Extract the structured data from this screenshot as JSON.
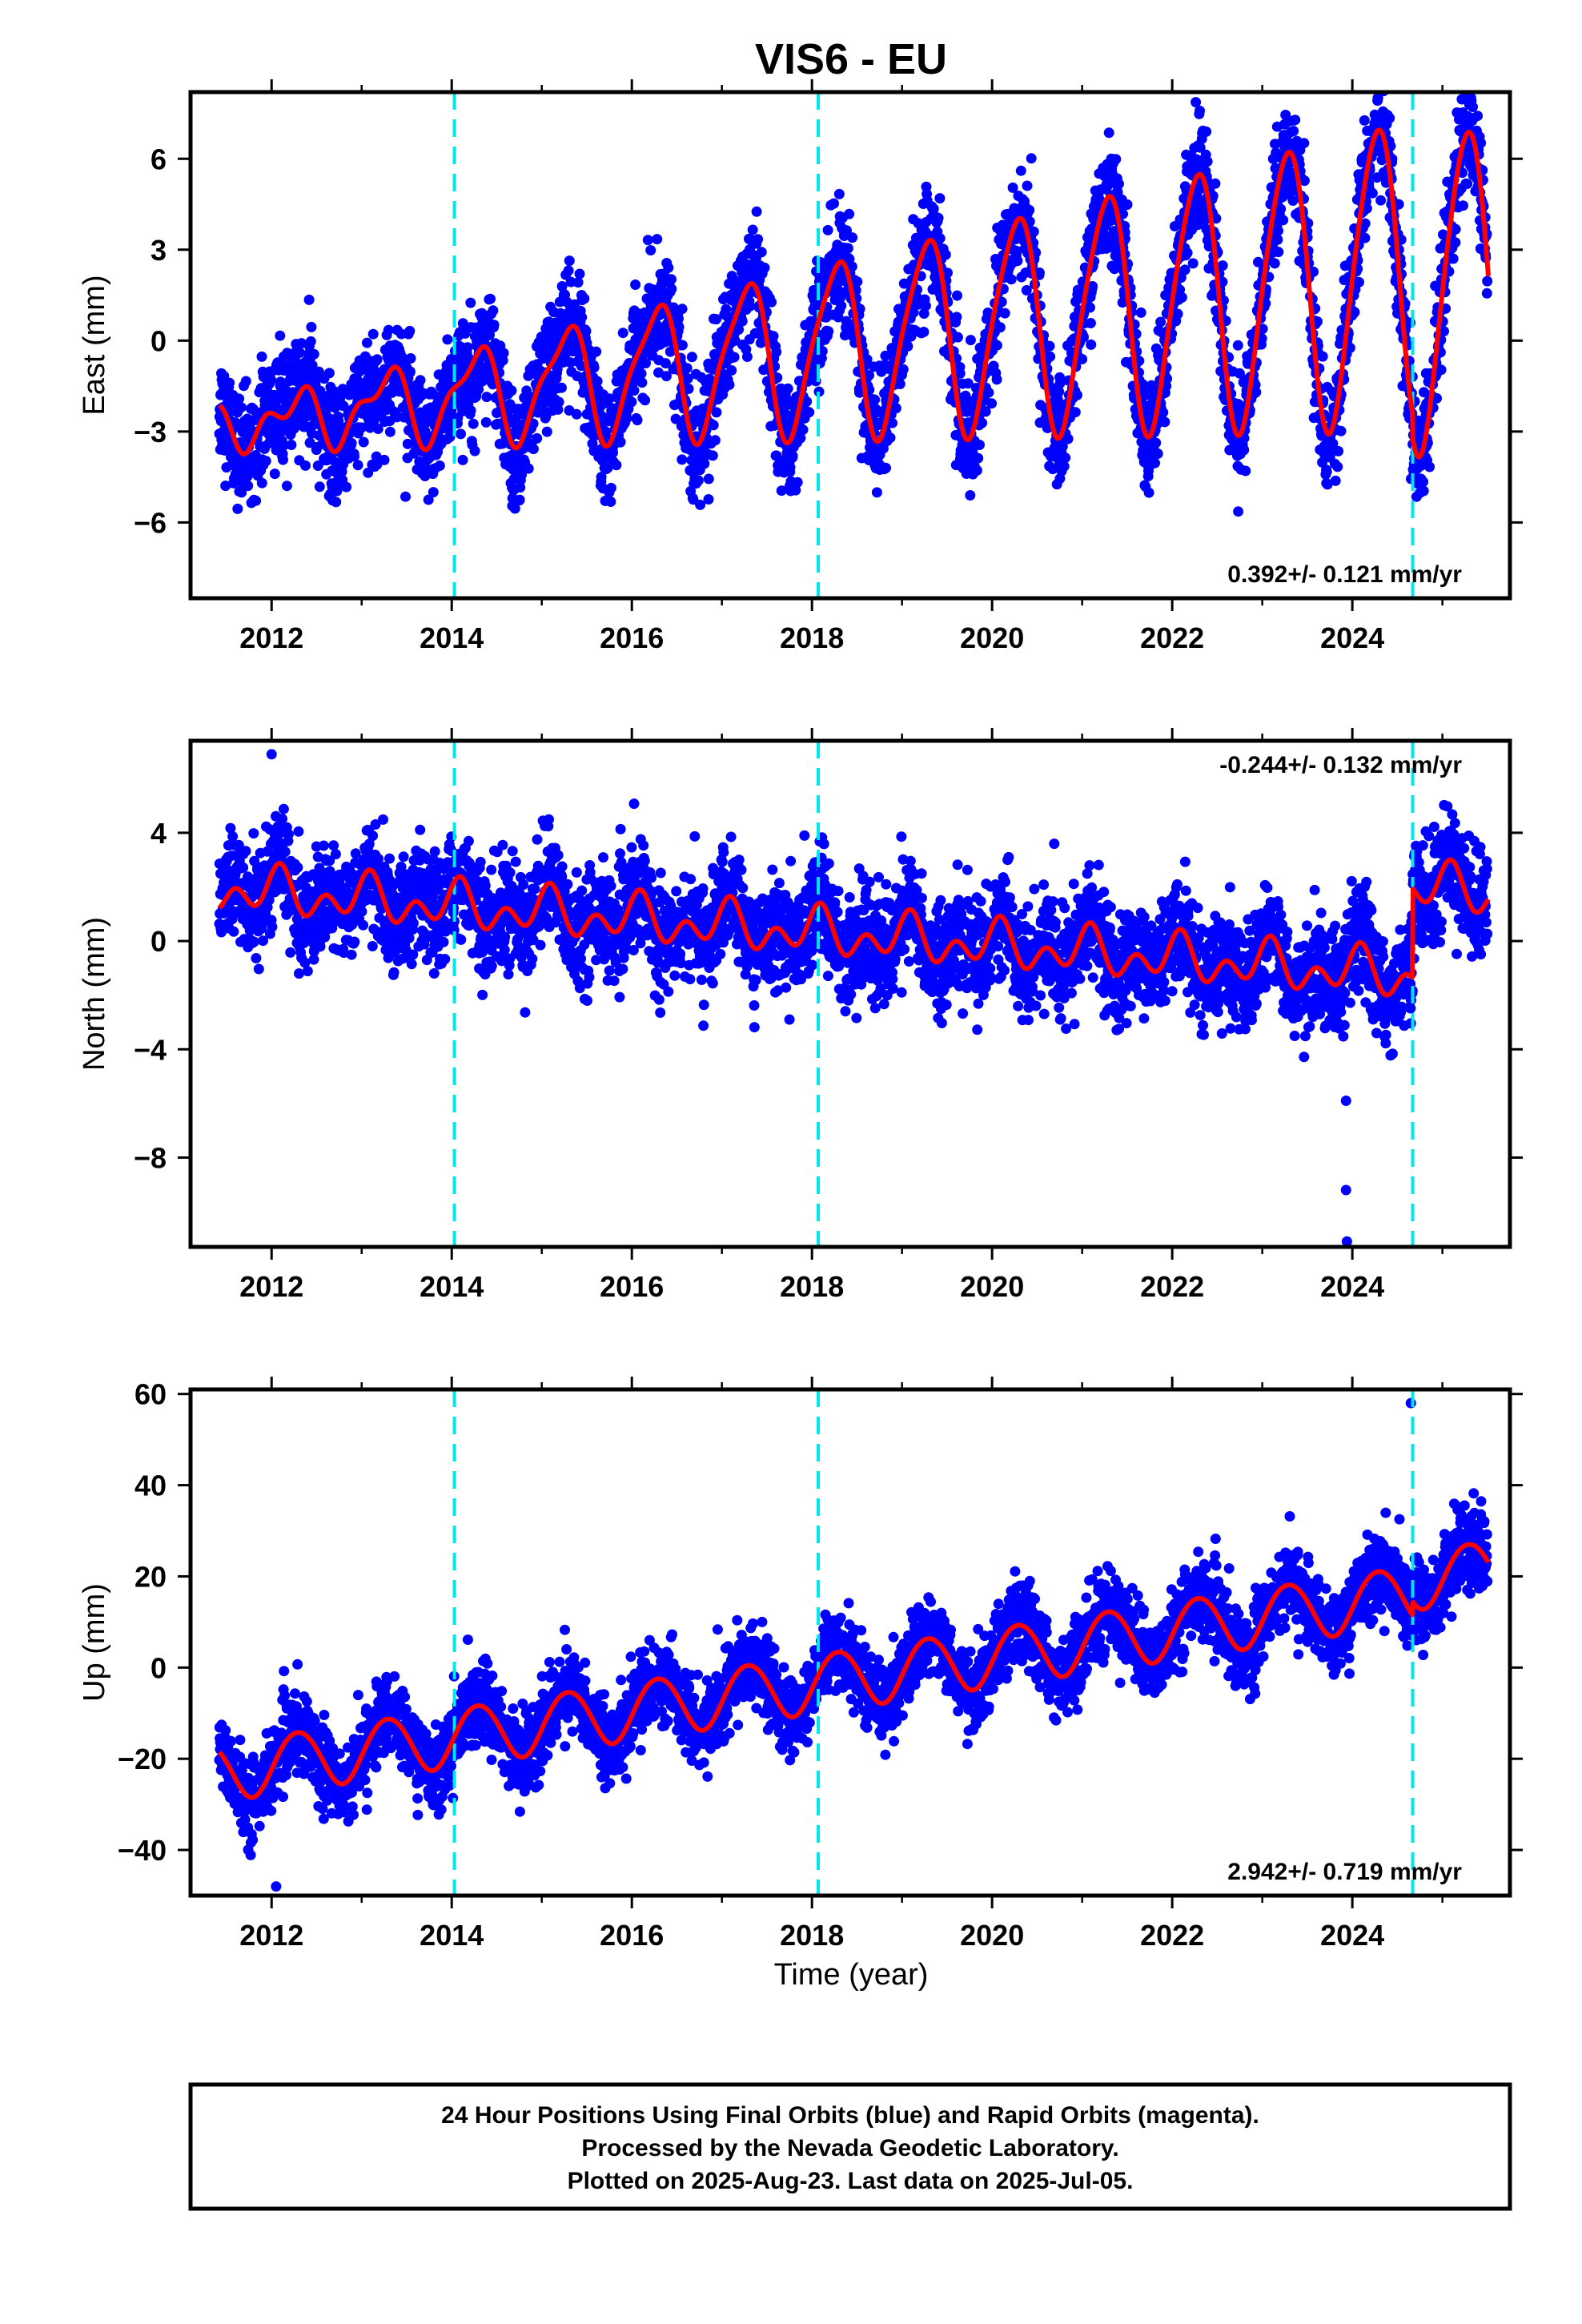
{
  "title": "VIS6 - EU",
  "xlabel": "Time (year)",
  "footer": {
    "lines": [
      "24 Hour Positions Using Final Orbits (blue) and Rapid Orbits (magenta).",
      "Processed by the Nevada Geodetic Laboratory.",
      "Plotted on 2025-Aug-23. Last data on 2025-Jul-05."
    ]
  },
  "colors": {
    "points": "#0000ff",
    "model": "#ff0000",
    "steps": "#00e5ee",
    "frame": "#000000"
  },
  "chart_data": [
    {
      "type": "scatter",
      "component": "east",
      "ylabel": "East (mm)",
      "rate": "0.392+/- 0.121 mm/yr",
      "rate_position": "bottom-right",
      "xlim": [
        2011.1,
        2025.75
      ],
      "ylim": [
        -8.5,
        8.2
      ],
      "xticks": [
        2012,
        2014,
        2016,
        2018,
        2020,
        2022,
        2024
      ],
      "yticks": [
        -6,
        -3,
        0,
        3,
        6
      ],
      "ytick_labels": [
        "−6",
        "−3",
        "0",
        "3",
        "6"
      ],
      "step_epochs": [
        2014.03,
        2018.07,
        2024.67
      ],
      "data_span": [
        2011.42,
        2025.51
      ],
      "model": {
        "offset": -0.1,
        "rate": 0.392,
        "ref_epoch": 2018.5,
        "annual_cos": -0.2,
        "annual_sin": 2.9,
        "annual_amp_trend": 0.12,
        "semiannual_cos": 0.3,
        "semiannual_sin": -0.4,
        "steps": [
          0.0,
          0.0,
          -0.8
        ]
      },
      "scatter_sigma": 0.9
    },
    {
      "type": "scatter",
      "component": "north",
      "ylabel": "North (mm)",
      "rate": "-0.244+/- 0.132 mm/yr",
      "rate_position": "top-right",
      "xlim": [
        2011.1,
        2025.75
      ],
      "ylim": [
        -11.3,
        7.4
      ],
      "xticks": [
        2012,
        2014,
        2016,
        2018,
        2020,
        2022,
        2024
      ],
      "yticks": [
        -8,
        -4,
        0,
        4
      ],
      "ytick_labels": [
        "−8",
        "−4",
        "0",
        "4"
      ],
      "step_epochs": [
        2014.03,
        2018.07,
        2024.67
      ],
      "data_span": [
        2011.42,
        2025.51
      ],
      "model": {
        "offset": 0.2,
        "rate": -0.244,
        "ref_epoch": 2018.5,
        "annual_cos": 0.5,
        "annual_sin": 0.2,
        "annual_amp_trend": 0.0,
        "semiannual_cos": 0.2,
        "semiannual_sin": 0.55,
        "steps": [
          0.0,
          0.0,
          3.3
        ]
      },
      "scatter_sigma": 0.95,
      "outliers": [
        {
          "x": 2023.93,
          "y": -5.9
        },
        {
          "x": 2023.93,
          "y": -9.2
        },
        {
          "x": 2023.94,
          "y": -11.1
        },
        {
          "x": 2012.0,
          "y": 6.9
        }
      ]
    },
    {
      "type": "scatter",
      "component": "up",
      "ylabel": "Up (mm)",
      "rate": "2.942+/- 0.719 mm/yr",
      "rate_position": "bottom-right",
      "xlim": [
        2011.1,
        2025.75
      ],
      "ylim": [
        -50,
        61
      ],
      "xticks": [
        2012,
        2014,
        2016,
        2018,
        2020,
        2022,
        2024
      ],
      "yticks": [
        -40,
        -20,
        0,
        20,
        40,
        60
      ],
      "ytick_labels": [
        "−40",
        "−20",
        "0",
        "20",
        "40",
        "60"
      ],
      "step_epochs": [
        2014.03,
        2018.07,
        2024.67
      ],
      "data_span": [
        2011.42,
        2025.51
      ],
      "model": {
        "offset": -2.0,
        "rate": 2.942,
        "ref_epoch": 2018.5,
        "annual_cos": -1.5,
        "annual_sin": 6.2,
        "annual_amp_trend": 0.0,
        "semiannual_cos": 0.3,
        "semiannual_sin": 0.2,
        "steps": [
          0.0,
          0.0,
          3.0
        ]
      },
      "scatter_sigma": 4.2,
      "outliers": [
        {
          "x": 2024.65,
          "y": 58
        },
        {
          "x": 2012.05,
          "y": -48
        }
      ]
    }
  ]
}
